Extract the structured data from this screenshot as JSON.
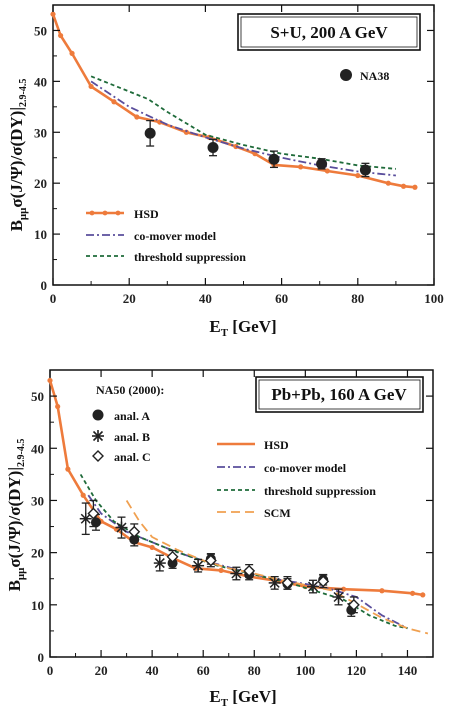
{
  "chart_data": [
    {
      "type": "line",
      "title": "S+U, 200 A GeV",
      "xlabel_main": "E",
      "xlabel_sub": "T",
      "xlabel_rest": " [GeV]",
      "ylabel_main": "B",
      "ylabel_sub": "μμ",
      "ylabel_rest": "σ(J/Ψ)/σ(DY)|",
      "ylabel_range": "2.9-4.5",
      "xlim": [
        0,
        100
      ],
      "ylim": [
        0,
        55
      ],
      "xticks": [
        "0",
        "20",
        "40",
        "60",
        "80",
        "100"
      ],
      "yticks": [
        "0",
        "10",
        "20",
        "30",
        "40",
        "50"
      ],
      "series": [
        {
          "name": "NA38",
          "style": "points",
          "color": "#222222",
          "x": [
            25.5,
            42,
            58,
            70.5,
            82
          ],
          "y": [
            29.8,
            27.0,
            24.7,
            23.8,
            22.6
          ],
          "err": [
            2.5,
            1.6,
            1.6,
            1.0,
            1.3
          ]
        },
        {
          "name": "HSD",
          "style": "line-dots",
          "color": "#ee7b3c",
          "x": [
            0,
            2,
            5,
            10,
            16,
            22,
            28,
            35,
            41,
            48,
            53,
            58,
            65,
            72,
            80,
            88,
            92,
            95
          ],
          "y": [
            53.2,
            49,
            45.5,
            39,
            36,
            33,
            32,
            30,
            29,
            27.2,
            25.8,
            23.6,
            23.2,
            22.4,
            21.5,
            20.0,
            19.4,
            19.2
          ]
        },
        {
          "name": "co-mover model",
          "style": "dashdot",
          "color": "#5a4e9c",
          "x": [
            10,
            20,
            30,
            40,
            50,
            60,
            70,
            80,
            90
          ],
          "y": [
            40,
            35,
            31.5,
            29,
            26.8,
            25,
            23.5,
            22.3,
            21.5
          ]
        },
        {
          "name": "threshold suppression",
          "style": "dashed",
          "color": "#1f6b3a",
          "x": [
            10,
            20,
            25,
            30,
            40,
            50,
            60,
            70,
            80,
            90
          ],
          "y": [
            41,
            38,
            36.5,
            34,
            29.5,
            27.5,
            25.8,
            24.8,
            23.5,
            22.8
          ]
        }
      ],
      "legend": [
        "HSD",
        "co-mover model",
        "threshold suppression"
      ],
      "legend_points": [
        "NA38"
      ]
    },
    {
      "type": "line",
      "title": "Pb+Pb, 160 A GeV",
      "xlabel_main": "E",
      "xlabel_sub": "T",
      "xlabel_rest": " [GeV]",
      "ylabel_main": "B",
      "ylabel_sub": "μμ",
      "ylabel_rest": "σ(J/Ψ)/σ(DY)|",
      "ylabel_range": "2.9-4.5",
      "xlim": [
        0,
        150
      ],
      "ylim": [
        0,
        55
      ],
      "xticks": [
        "0",
        "20",
        "40",
        "60",
        "80",
        "100",
        "120",
        "140"
      ],
      "yticks": [
        "0",
        "10",
        "20",
        "30",
        "40",
        "50"
      ],
      "legend_header": "NA50 (2000):",
      "series": [
        {
          "name": "anal. A",
          "style": "points",
          "marker": "circle",
          "color": "#222222",
          "x": [
            18,
            33,
            48,
            63,
            78,
            93,
            107,
            118
          ],
          "y": [
            25.8,
            22.5,
            18.0,
            18.8,
            15.8,
            14.0,
            14.8,
            9.0
          ],
          "err": [
            1.5,
            1.2,
            1.0,
            1.0,
            1.0,
            1.0,
            1.0,
            1.2
          ]
        },
        {
          "name": "anal. B",
          "style": "points",
          "marker": "star",
          "color": "#222222",
          "x": [
            14,
            28,
            43,
            58,
            73,
            88,
            103,
            113
          ],
          "y": [
            26.5,
            24.8,
            18.0,
            17.5,
            16.0,
            14.2,
            13.5,
            11.5
          ],
          "err": [
            3.0,
            2.0,
            1.5,
            1.2,
            1.2,
            1.2,
            1.2,
            1.5
          ]
        },
        {
          "name": "anal. C",
          "style": "points",
          "marker": "diamond",
          "color": "#222222",
          "x": [
            17,
            33,
            48,
            63,
            78,
            93,
            107,
            119
          ],
          "y": [
            27.5,
            24.0,
            19.2,
            18.5,
            16.5,
            14.2,
            14.5,
            10.0
          ],
          "err": [
            2.5,
            1.5,
            1.2,
            1.2,
            1.2,
            1.2,
            1.2,
            1.5
          ]
        },
        {
          "name": "HSD",
          "style": "line-dots",
          "color": "#ee7b3c",
          "x": [
            0,
            3,
            7,
            13,
            20,
            26,
            33,
            40,
            48,
            57,
            67,
            78,
            90,
            100,
            115,
            130,
            142,
            146
          ],
          "y": [
            53,
            48,
            36,
            31,
            26,
            24.5,
            22,
            21,
            19,
            17,
            16.6,
            15.4,
            14.5,
            13.5,
            13,
            12.7,
            12.2,
            11.9
          ]
        },
        {
          "name": "co-mover model",
          "style": "dashdot",
          "color": "#5a4e9c",
          "x": [
            15,
            20,
            30,
            40,
            50,
            60,
            70,
            80,
            90,
            100,
            110,
            120,
            130,
            140
          ],
          "y": [
            31,
            27.5,
            24,
            22,
            20,
            18.5,
            17.2,
            15.8,
            14.8,
            14.0,
            13.0,
            11.5,
            8.0,
            5.5
          ]
        },
        {
          "name": "threshold suppression",
          "style": "dashed",
          "color": "#1f6b3a",
          "x": [
            12,
            18,
            25,
            35,
            45,
            55,
            65,
            75,
            85,
            95,
            105,
            115,
            125,
            135,
            140
          ],
          "y": [
            35,
            30,
            26,
            23,
            21,
            19.2,
            17.6,
            16.4,
            15.2,
            14.0,
            12.5,
            11.0,
            8.0,
            6.0,
            5.5
          ]
        },
        {
          "name": "SCM",
          "style": "longdash",
          "color": "#f0a050",
          "x": [
            30,
            35,
            40,
            50,
            60,
            70,
            80,
            90,
            100,
            110,
            120,
            130,
            140,
            148
          ],
          "y": [
            30,
            26,
            23,
            20.5,
            18.5,
            17,
            16,
            14.8,
            13.8,
            12.8,
            10.2,
            7.5,
            5.5,
            4.5
          ]
        }
      ],
      "legend": [
        "HSD",
        "co-mover model",
        "threshold suppression",
        "SCM"
      ]
    }
  ]
}
